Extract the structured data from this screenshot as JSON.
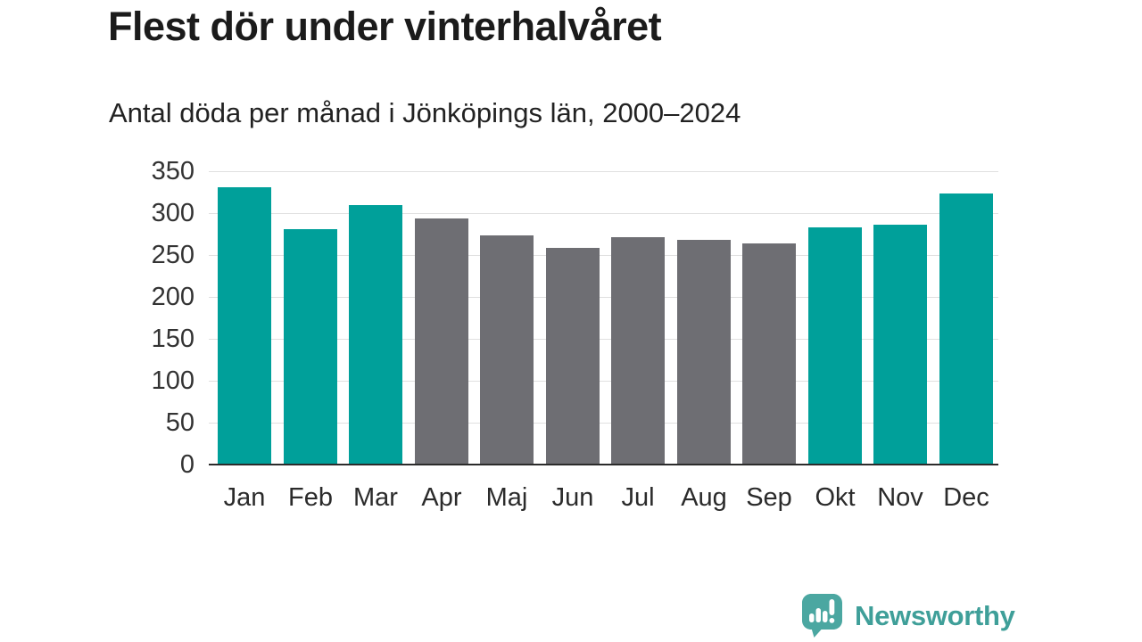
{
  "chart_data": {
    "type": "bar",
    "title": "Flest dör under vinterhalvåret",
    "subtitle": "Antal döda per månad i Jönköpings län, 2000–2024",
    "categories": [
      "Jan",
      "Feb",
      "Mar",
      "Apr",
      "Maj",
      "Jun",
      "Jul",
      "Aug",
      "Sep",
      "Okt",
      "Nov",
      "Dec"
    ],
    "values": [
      331,
      281,
      310,
      294,
      273,
      258,
      271,
      268,
      264,
      283,
      286,
      323
    ],
    "bar_color_keys": [
      "teal",
      "teal",
      "teal",
      "gray",
      "gray",
      "gray",
      "gray",
      "gray",
      "gray",
      "teal",
      "teal",
      "teal"
    ],
    "colors": {
      "teal": "#00a09a",
      "gray": "#6e6e73",
      "gridline": "#e0e0e0",
      "axis": "#2b2b2b"
    },
    "xlabel": "",
    "ylabel": "",
    "ylim": [
      0,
      350
    ],
    "yticks": [
      0,
      50,
      100,
      150,
      200,
      250,
      300,
      350
    ],
    "grid": "horizontal",
    "legend": "none"
  },
  "footer": {
    "brand": "Newsworthy",
    "brand_color": "#3f9f99",
    "icon_color": "#4ba7a1"
  }
}
